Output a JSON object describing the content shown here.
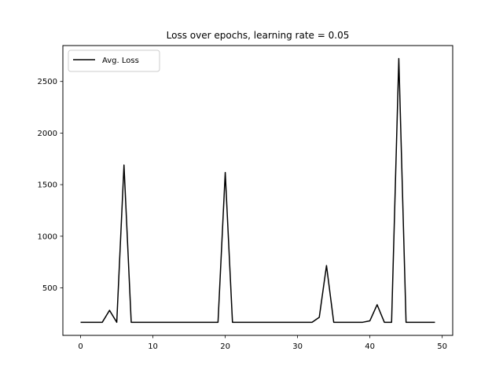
{
  "chart_data": {
    "type": "line",
    "title": "Loss over epochs, learning rate = 0.05",
    "xlabel": "",
    "ylabel": "",
    "xlim": [
      -2.45,
      51.45
    ],
    "ylim": [
      39,
      2848
    ],
    "xticks": [
      0,
      10,
      20,
      30,
      40,
      50
    ],
    "yticks": [
      500,
      1000,
      1500,
      2000,
      2500
    ],
    "grid": false,
    "legend": {
      "placement": "top-left"
    },
    "series": [
      {
        "name": "Avg. Loss",
        "color": "#000000",
        "x": [
          0,
          1,
          2,
          3,
          4,
          5,
          6,
          7,
          8,
          9,
          10,
          11,
          12,
          13,
          14,
          15,
          16,
          17,
          18,
          19,
          20,
          21,
          22,
          23,
          24,
          25,
          26,
          27,
          28,
          29,
          30,
          31,
          32,
          33,
          34,
          35,
          36,
          37,
          38,
          39,
          40,
          41,
          42,
          43,
          44,
          45,
          46,
          47,
          48,
          49
        ],
        "y": [
          166,
          166,
          166,
          166,
          282,
          166,
          1690,
          166,
          166,
          166,
          166,
          166,
          166,
          166,
          166,
          166,
          166,
          166,
          166,
          166,
          1618,
          166,
          166,
          166,
          166,
          166,
          166,
          166,
          166,
          166,
          166,
          166,
          166,
          214,
          716,
          166,
          166,
          166,
          166,
          166,
          180,
          336,
          166,
          166,
          2722,
          166,
          166,
          166,
          166,
          166
        ]
      }
    ]
  }
}
